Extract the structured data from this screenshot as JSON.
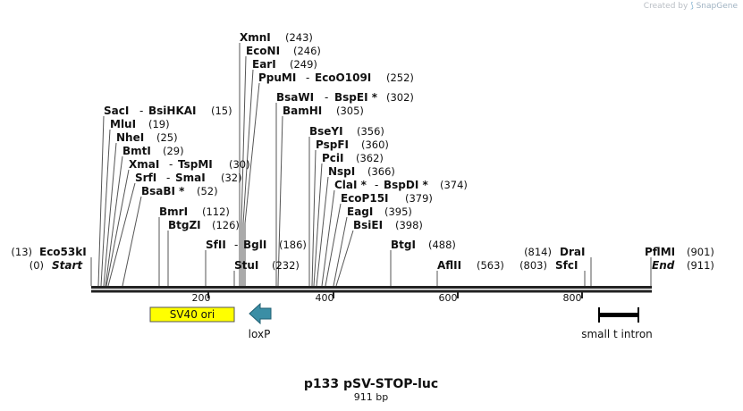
{
  "credit": {
    "prefix": "Created by",
    "glyph": "⟆",
    "brand": "SnapGene"
  },
  "map": {
    "name": "p133 pSV-STOP-luc",
    "length_label": "911 bp",
    "length": 911,
    "ticks": [
      "200",
      "400",
      "600",
      "800"
    ],
    "ends": [
      {
        "id": "eco53ki",
        "name": "Eco53kI",
        "pos": "(13)"
      },
      {
        "id": "start",
        "name": "Start",
        "pos": "(0)"
      },
      {
        "id": "pflmi",
        "name": "PflMI",
        "pos": "(901)"
      },
      {
        "id": "end",
        "name": "End",
        "pos": "(911)"
      }
    ],
    "sites": [
      {
        "id": "xmni",
        "label": "XmnI",
        "pos": "(243)"
      },
      {
        "id": "econi",
        "label": "EcoNI",
        "pos": "(246)"
      },
      {
        "id": "eari",
        "label": "EarI",
        "pos": "(249)"
      },
      {
        "id": "ppumi",
        "label": "PpuMI",
        "alt": "EcoO109I",
        "pos": "(252)"
      },
      {
        "id": "bsawi",
        "label": "BsaWI",
        "alt": "BspEI *",
        "pos": "(302)"
      },
      {
        "id": "bamhi",
        "label": "BamHI",
        "pos": "(305)"
      },
      {
        "id": "saci",
        "label": "SacI",
        "alt": "BsiHKAI",
        "pos": "(15)"
      },
      {
        "id": "mlui",
        "label": "MluI",
        "pos": "(19)"
      },
      {
        "id": "nhei",
        "label": "NheI",
        "pos": "(25)"
      },
      {
        "id": "bmti",
        "label": "BmtI",
        "pos": "(29)"
      },
      {
        "id": "xmai",
        "label": "XmaI",
        "alt": "TspMI",
        "pos": "(30)"
      },
      {
        "id": "srfi",
        "label": "SrfI",
        "alt": "SmaI",
        "pos": "(32)"
      },
      {
        "id": "bsabi",
        "label": "BsaBI *",
        "pos": "(52)"
      },
      {
        "id": "bmri",
        "label": "BmrI",
        "pos": "(112)"
      },
      {
        "id": "btgzi",
        "label": "BtgZI",
        "pos": "(126)"
      },
      {
        "id": "sfii",
        "label": "SfII",
        "alt": "BglI",
        "pos": "(186)"
      },
      {
        "id": "stui",
        "label": "StuI",
        "pos": "(232)"
      },
      {
        "id": "bseyi",
        "label": "BseYI",
        "pos": "(356)"
      },
      {
        "id": "pspfi",
        "label": "PspFI",
        "pos": "(360)"
      },
      {
        "id": "pcii",
        "label": "PciI",
        "pos": "(362)"
      },
      {
        "id": "nspi",
        "label": "NspI",
        "pos": "(366)"
      },
      {
        "id": "clai",
        "label": "ClaI *",
        "alt": "BspDI *",
        "pos": "(374)"
      },
      {
        "id": "ecop15i",
        "label": "EcoP15I",
        "pos": "(379)"
      },
      {
        "id": "eagi",
        "label": "EagI",
        "pos": "(395)"
      },
      {
        "id": "bsiei",
        "label": "BsiEI",
        "pos": "(398)"
      },
      {
        "id": "btgi",
        "label": "BtgI",
        "pos": "(488)"
      },
      {
        "id": "aflii",
        "label": "AflII",
        "pos": "(563)"
      },
      {
        "id": "drai",
        "label": "DraI",
        "pos": "(814)"
      },
      {
        "id": "sfci",
        "label": "SfcI",
        "pos": "(803)"
      }
    ],
    "features": [
      {
        "id": "sv40-ori",
        "label": "SV40 ori",
        "color": "#ffff00"
      },
      {
        "id": "loxp",
        "label": "loxP",
        "color": "#3b8ea5"
      },
      {
        "id": "small-t-intron",
        "label": "small t intron",
        "color": "#000000"
      }
    ]
  }
}
